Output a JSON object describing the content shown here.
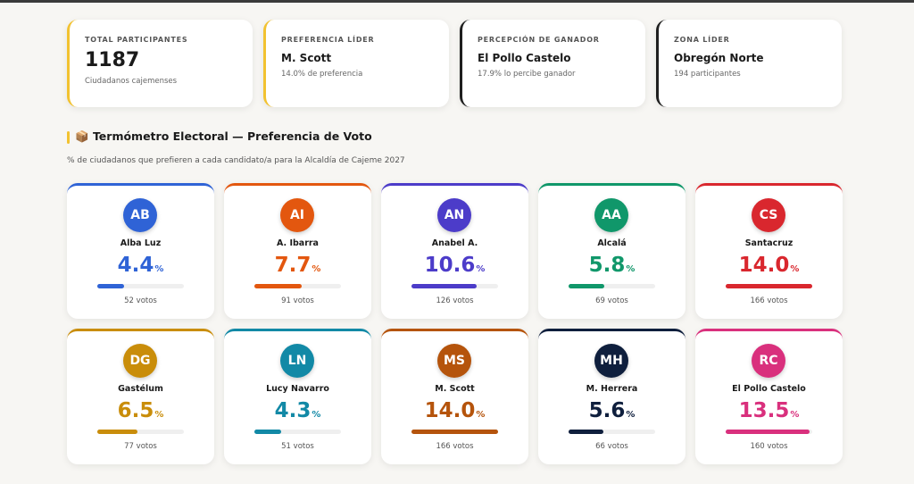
{
  "stats": [
    {
      "label": "TOTAL PARTICIPANTES",
      "value": "1187",
      "note": "Ciudadanos cajemenses",
      "color": "#f2c230"
    },
    {
      "label": "PREFERENCIA LÍDER",
      "value": "M. Scott",
      "note": "14.0% de preferencia",
      "color": "#f2c230"
    },
    {
      "label": "PERCEPCIÓN DE GANADOR",
      "value": "El Pollo Castelo",
      "note": "17.9% lo percibe ganador",
      "color": "#1f1f1f"
    },
    {
      "label": "ZONA LÍDER",
      "value": "Obregón Norte",
      "note": "194 participantes",
      "color": "#1f1f1f"
    }
  ],
  "section": {
    "icon": "📦",
    "title": "Termómetro Electoral — Preferencia de Voto",
    "subtitle": "% de ciudadanos que prefieren a cada candidato/a para la Alcaldía de Cajeme 2027",
    "unit": "%"
  },
  "candidates": [
    {
      "initials": "AB",
      "name": "Alba Luz",
      "percent": 4.4,
      "percent_label": "4.4",
      "votes_label": "52 votos",
      "color": "#2f63d6"
    },
    {
      "initials": "AI",
      "name": "A. Ibarra",
      "percent": 7.7,
      "percent_label": "7.7",
      "votes_label": "91 votos",
      "color": "#e3570f"
    },
    {
      "initials": "AN",
      "name": "Anabel A.",
      "percent": 10.6,
      "percent_label": "10.6",
      "votes_label": "126 votos",
      "color": "#4c3cc9"
    },
    {
      "initials": "AA",
      "name": "Alcalá",
      "percent": 5.8,
      "percent_label": "5.8",
      "votes_label": "69 votos",
      "color": "#10976a"
    },
    {
      "initials": "CS",
      "name": "Santacruz",
      "percent": 14.0,
      "percent_label": "14.0",
      "votes_label": "166 votos",
      "color": "#d9272e"
    },
    {
      "initials": "DG",
      "name": "Gastélum",
      "percent": 6.5,
      "percent_label": "6.5",
      "votes_label": "77 votos",
      "color": "#c98d0a"
    },
    {
      "initials": "LN",
      "name": "Lucy Navarro",
      "percent": 4.3,
      "percent_label": "4.3",
      "votes_label": "51 votos",
      "color": "#1289a6"
    },
    {
      "initials": "MS",
      "name": "M. Scott",
      "percent": 14.0,
      "percent_label": "14.0",
      "votes_label": "166 votos",
      "color": "#b5540c"
    },
    {
      "initials": "MH",
      "name": "M. Herrera",
      "percent": 5.6,
      "percent_label": "5.6",
      "votes_label": "66 votos",
      "color": "#0f1f3d"
    },
    {
      "initials": "RC",
      "name": "El Pollo Castelo",
      "percent": 13.5,
      "percent_label": "13.5",
      "votes_label": "160 votos",
      "color": "#d9307d"
    }
  ]
}
